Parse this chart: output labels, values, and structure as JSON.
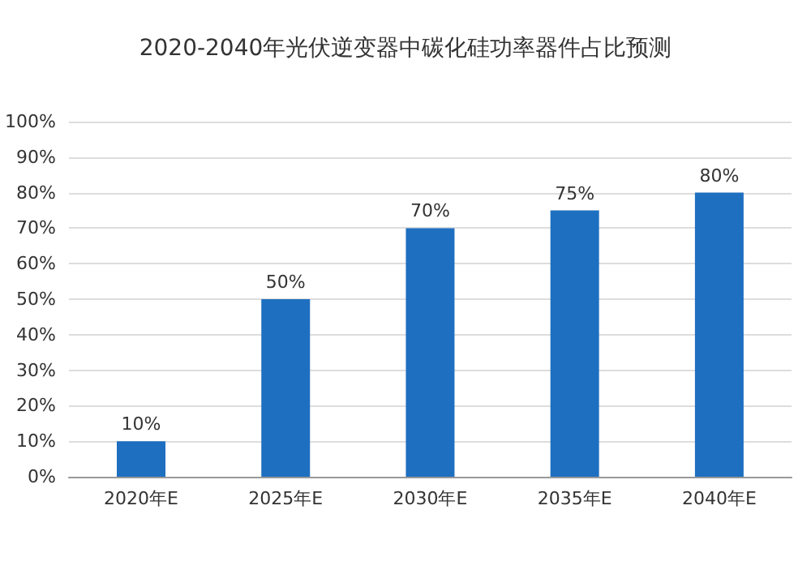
{
  "chart_data": {
    "type": "bar",
    "title": "2020-2040年光伏逆变器中碳化硅功率器件占比预测",
    "categories": [
      "2020年E",
      "2025年E",
      "2030年E",
      "2035年E",
      "2040年E"
    ],
    "values": [
      10,
      50,
      70,
      75,
      80
    ],
    "value_labels": [
      "10%",
      "50%",
      "70%",
      "75%",
      "80%"
    ],
    "color": "#1e6fc0",
    "ylim": [
      0,
      100
    ],
    "yticks": [
      {
        "value": 0,
        "label": "0%"
      },
      {
        "value": 10,
        "label": "10%"
      },
      {
        "value": 20,
        "label": "20%"
      },
      {
        "value": 30,
        "label": "30%"
      },
      {
        "value": 40,
        "label": "40%"
      },
      {
        "value": 50,
        "label": "50%"
      },
      {
        "value": 60,
        "label": "60%"
      },
      {
        "value": 70,
        "label": "70%"
      },
      {
        "value": 80,
        "label": "80%"
      },
      {
        "value": 90,
        "label": "90%"
      },
      {
        "value": 100,
        "label": "100%"
      }
    ],
    "grid": "y"
  }
}
